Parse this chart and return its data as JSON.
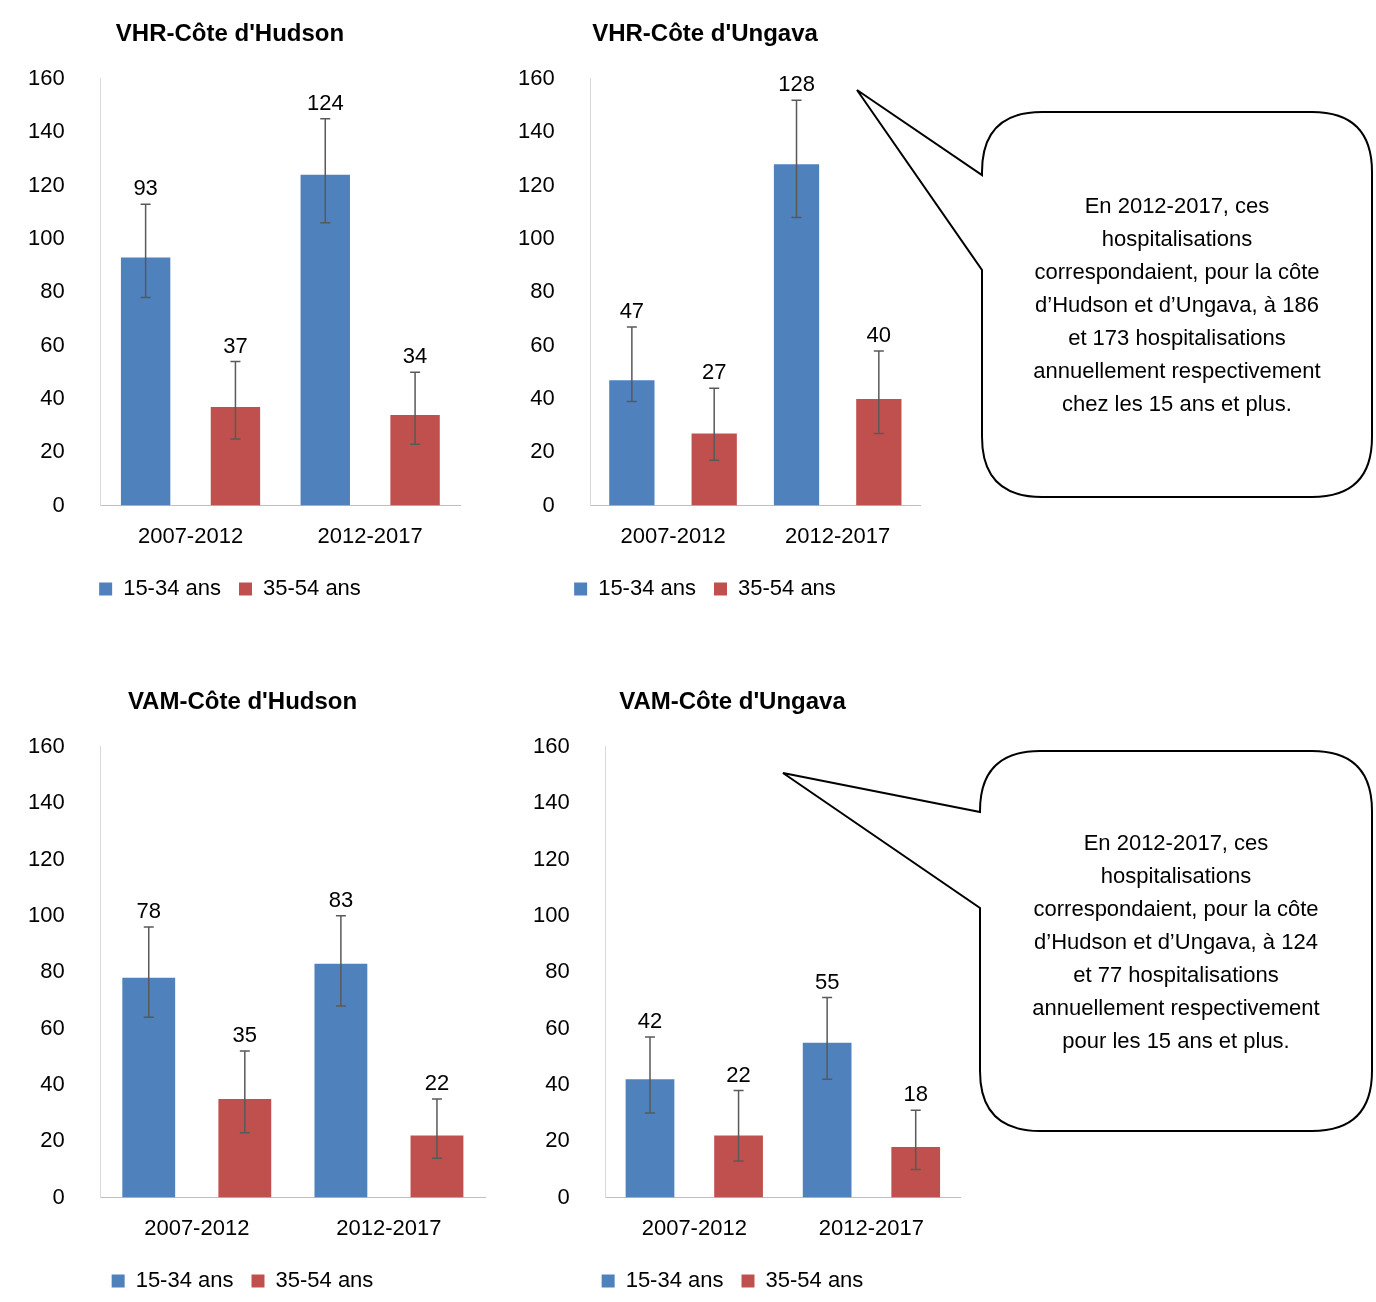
{
  "chart_data": [
    {
      "type": "bar",
      "title": "VHR-Côte d'Hudson",
      "categories": [
        "2007-2012",
        "2012-2017"
      ],
      "series": [
        {
          "name": "15-34 ans",
          "color": "#4f81bd",
          "values": [
            93,
            124
          ],
          "errors": [
            [
              78,
              113
            ],
            [
              106,
              145
            ]
          ]
        },
        {
          "name": "35-54 ans",
          "color": "#c0504d",
          "values": [
            37,
            34
          ],
          "errors": [
            [
              25,
              54
            ],
            [
              23,
              50
            ]
          ]
        }
      ],
      "ylim": [
        0,
        160
      ],
      "yticks": [
        0,
        20,
        40,
        60,
        80,
        100,
        120,
        140,
        160
      ],
      "grid": false,
      "legend": "bottom",
      "data_labels": true
    },
    {
      "type": "bar",
      "title": "VHR-Côte d'Ungava",
      "categories": [
        "2007-2012",
        "2012-2017"
      ],
      "series": [
        {
          "name": "15-34 ans",
          "color": "#4f81bd",
          "values": [
            47,
            128
          ],
          "errors": [
            [
              39,
              67
            ],
            [
              108,
              152
            ]
          ]
        },
        {
          "name": "35-54 ans",
          "color": "#c0504d",
          "values": [
            27,
            40
          ],
          "errors": [
            [
              17,
              44
            ],
            [
              27,
              58
            ]
          ]
        }
      ],
      "ylim": [
        0,
        160
      ],
      "yticks": [
        0,
        20,
        40,
        60,
        80,
        100,
        120,
        140,
        160
      ],
      "grid": false,
      "legend": "bottom",
      "data_labels": true,
      "annotations": [
        "En 2012-2017, ces hospitalisations correspondaient, pour la côte d’Hudson et d’Ungava, à 186 et 173 hospitalisations annuellement respectivement chez les 15 ans et plus."
      ]
    },
    {
      "type": "bar",
      "title": "VAM-Côte d'Hudson",
      "categories": [
        "2007-2012",
        "2012-2017"
      ],
      "series": [
        {
          "name": "15-34 ans",
          "color": "#4f81bd",
          "values": [
            78,
            83
          ],
          "errors": [
            [
              64,
              96
            ],
            [
              68,
              100
            ]
          ]
        },
        {
          "name": "35-54 ans",
          "color": "#c0504d",
          "values": [
            35,
            22
          ],
          "errors": [
            [
              23,
              52
            ],
            [
              14,
              35
            ]
          ]
        }
      ],
      "ylim": [
        0,
        160
      ],
      "yticks": [
        0,
        20,
        40,
        60,
        80,
        100,
        120,
        140,
        160
      ],
      "grid": false,
      "legend": "bottom",
      "data_labels": true
    },
    {
      "type": "bar",
      "title": "VAM-Côte d'Ungava",
      "categories": [
        "2007-2012",
        "2012-2017"
      ],
      "series": [
        {
          "name": "15-34 ans",
          "color": "#4f81bd",
          "values": [
            42,
            55
          ],
          "errors": [
            [
              30,
              57
            ],
            [
              42,
              71
            ]
          ]
        },
        {
          "name": "35-54 ans",
          "color": "#c0504d",
          "values": [
            22,
            18
          ],
          "errors": [
            [
              13,
              38
            ],
            [
              10,
              31
            ]
          ]
        }
      ],
      "ylim": [
        0,
        160
      ],
      "yticks": [
        0,
        20,
        40,
        60,
        80,
        100,
        120,
        140,
        160
      ],
      "grid": false,
      "legend": "bottom",
      "data_labels": true,
      "annotations": [
        "En 2012-2017, ces hospitalisations correspondaient, pour la côte d’Hudson et d’Ungava, à 124 et 77 hospitalisations annuellement respectivement pour les 15 ans et plus."
      ]
    }
  ]
}
